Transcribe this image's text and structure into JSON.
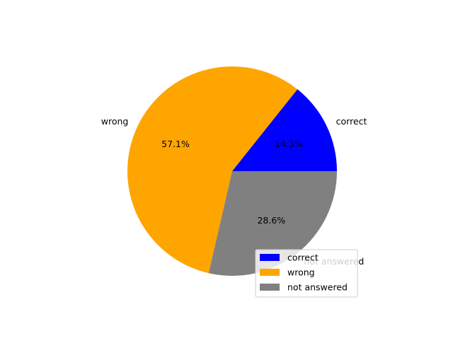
{
  "chart_data": {
    "type": "pie",
    "title": "",
    "slices": [
      {
        "label": "correct",
        "value": 14.3,
        "pct_label": "14.3%",
        "color": "#0000ff"
      },
      {
        "label": "wrong",
        "value": 57.1,
        "pct_label": "57.1%",
        "color": "#ffa500"
      },
      {
        "label": "not answered",
        "value": 28.6,
        "pct_label": "28.6%",
        "color": "#808080"
      }
    ],
    "start_angle_deg": 0,
    "direction": "counterclockwise",
    "legend": {
      "placement": "lower-right",
      "entries": [
        "correct",
        "wrong",
        "not answered"
      ]
    }
  }
}
